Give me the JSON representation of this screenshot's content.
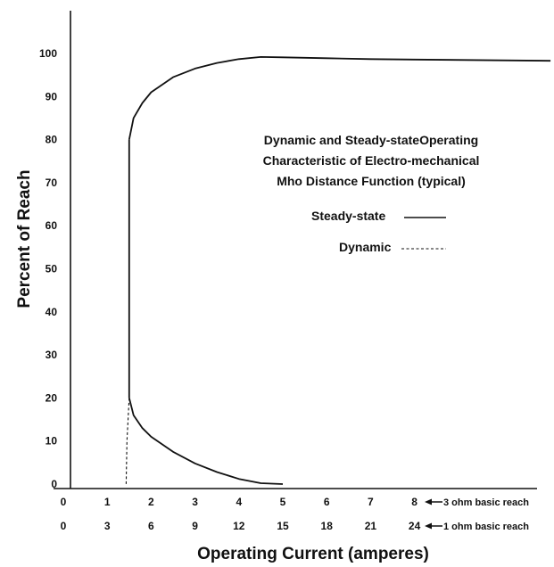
{
  "chart_data": {
    "type": "line",
    "title_lines": [
      "Dynamic and Steady-stateOperating",
      "Characteristic of Electro-mechanical",
      "Mho Distance Function (typical)"
    ],
    "ylabel": "Percent of Reach",
    "xlabel": "Operating Current (amperes)",
    "ylim": [
      0,
      100
    ],
    "yticks": [
      "0",
      "10",
      "20",
      "30",
      "40",
      "50",
      "60",
      "70",
      "80",
      "90",
      "100"
    ],
    "xlim": [
      0,
      8
    ],
    "x_axes": [
      {
        "ticks": [
          "0",
          "1",
          "2",
          "3",
          "4",
          "5",
          "6",
          "7",
          "8"
        ],
        "note": "3 ohm basic reach"
      },
      {
        "ticks": [
          "0",
          "3",
          "6",
          "9",
          "12",
          "15",
          "18",
          "21",
          "24"
        ],
        "note": "1 ohm basic reach"
      }
    ],
    "series": [
      {
        "name": "Steady-state",
        "style": "solid",
        "points": [
          [
            1.5,
            80
          ],
          [
            1.6,
            85
          ],
          [
            1.8,
            88.5
          ],
          [
            2,
            91
          ],
          [
            2.5,
            94.5
          ],
          [
            3,
            96.5
          ],
          [
            3.5,
            97.8
          ],
          [
            4,
            98.7
          ],
          [
            4.5,
            99.2
          ],
          [
            5,
            99.1
          ],
          [
            6,
            98.9
          ],
          [
            7,
            98.7
          ],
          [
            8,
            98.6
          ],
          [
            11.1,
            98.3
          ]
        ]
      },
      {
        "name": "Steady-state",
        "style": "solid",
        "points": [
          [
            1.5,
            20
          ],
          [
            1.6,
            16
          ],
          [
            1.8,
            13
          ],
          [
            2,
            11
          ],
          [
            2.5,
            7.5
          ],
          [
            3,
            4.8
          ],
          [
            3.5,
            2.8
          ],
          [
            4,
            1.2
          ],
          [
            4.5,
            0.2
          ],
          [
            5,
            0
          ]
        ]
      },
      {
        "name": "Steady-state",
        "style": "solid",
        "points": [
          [
            1.5,
            20
          ],
          [
            1.5,
            80
          ]
        ]
      },
      {
        "name": "Dynamic",
        "style": "dashed",
        "points": [
          [
            1.5,
            20
          ],
          [
            1.45,
            10
          ],
          [
            1.43,
            0
          ]
        ]
      }
    ],
    "legend": [
      {
        "label": "Steady-state",
        "style": "solid"
      },
      {
        "label": "Dynamic",
        "style": "dashed"
      }
    ],
    "grid": false
  }
}
